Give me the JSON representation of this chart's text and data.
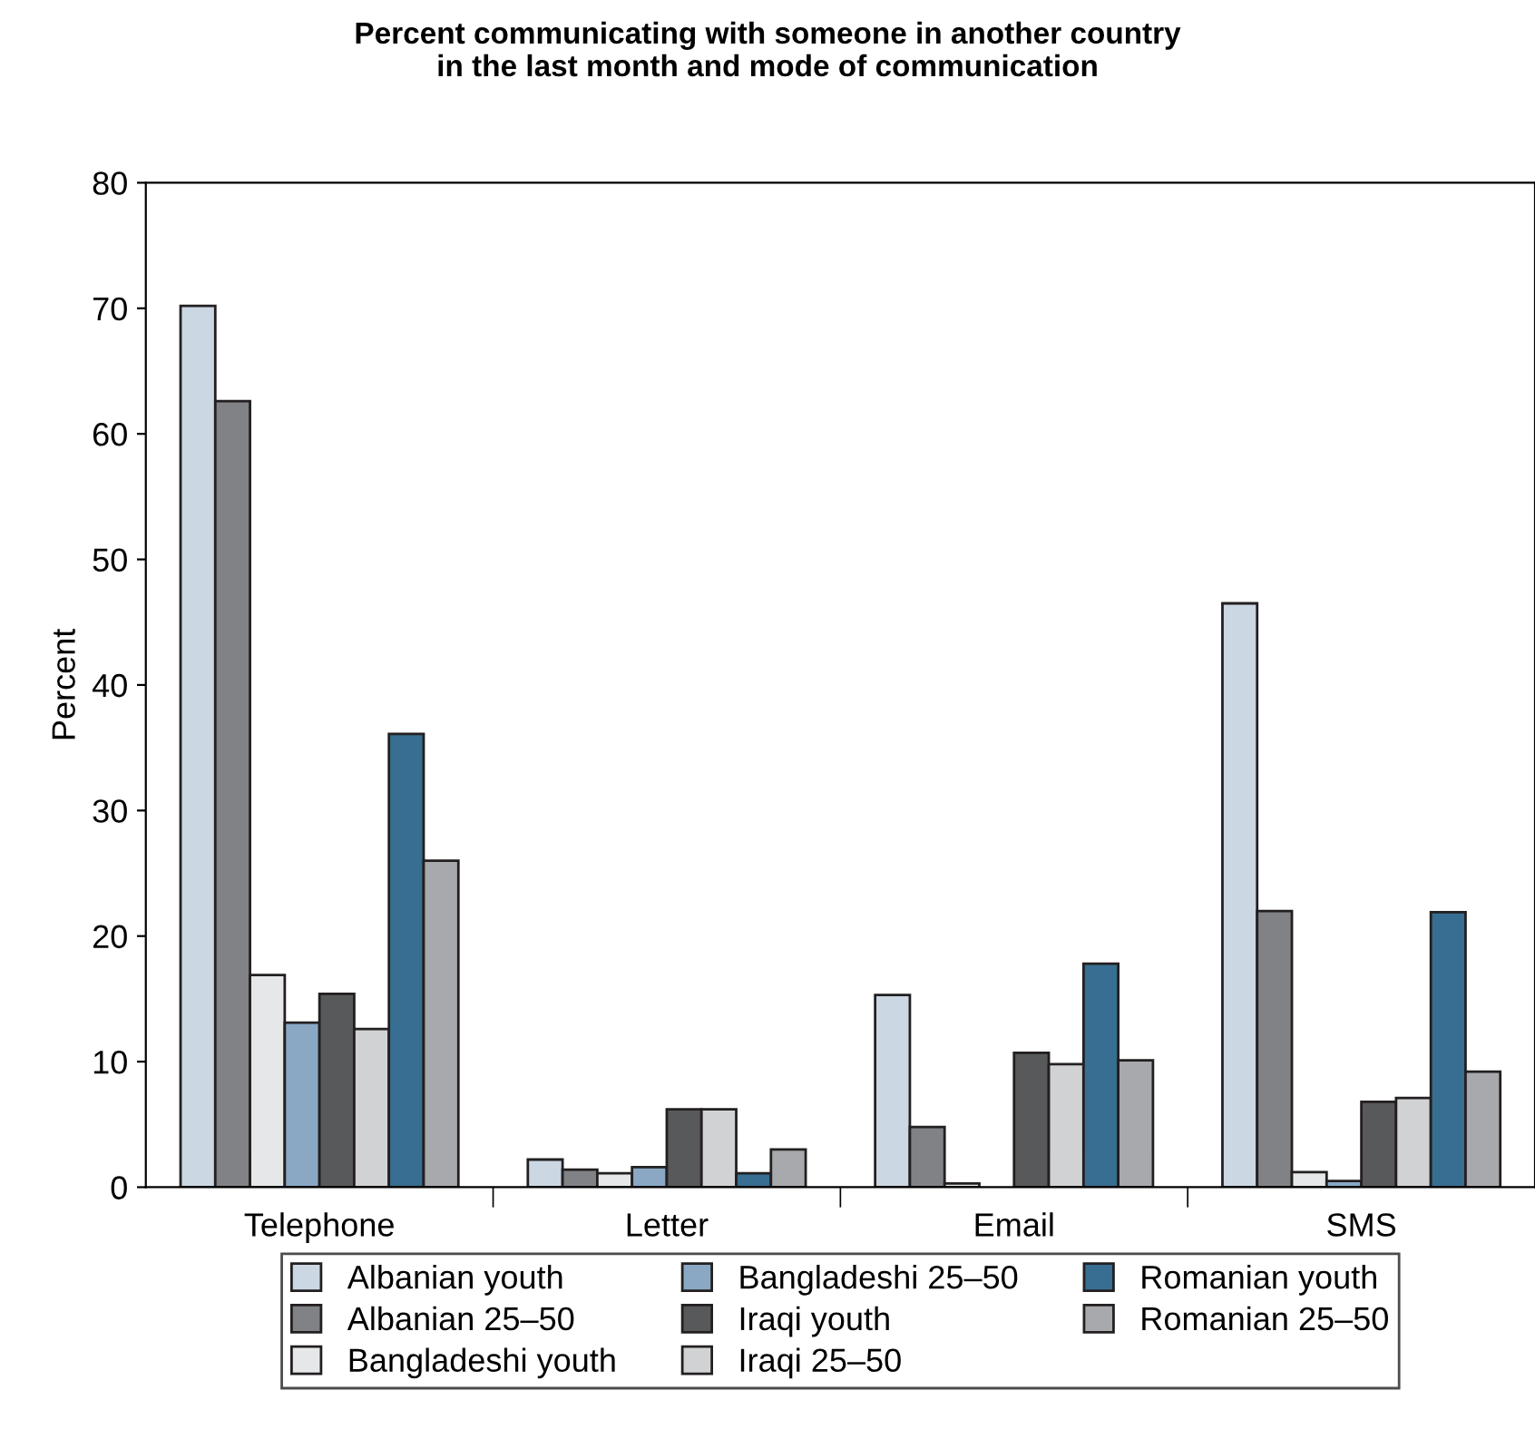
{
  "chart_data": {
    "type": "bar",
    "title": "Percent communicating with someone in another country\nin the last month and mode of communication",
    "ylabel": "Percent",
    "categories": [
      "Telephone",
      "Letter",
      "Email",
      "SMS"
    ],
    "series": [
      {
        "name": "Albanian youth",
        "color": "#cbd7e3",
        "values": [
          70.2,
          2.2,
          15.3,
          46.5
        ]
      },
      {
        "name": "Albanian 25–50",
        "color": "#808285",
        "values": [
          62.6,
          1.4,
          4.8,
          22.0
        ]
      },
      {
        "name": "Bangladeshi youth",
        "color": "#e6e7e8",
        "values": [
          16.9,
          1.1,
          0.3,
          1.2
        ]
      },
      {
        "name": "Bangladeshi 25–50",
        "color": "#8aa8c3",
        "values": [
          13.1,
          1.6,
          null,
          0.5
        ]
      },
      {
        "name": "Iraqi youth",
        "color": "#58595b",
        "values": [
          15.4,
          6.2,
          10.7,
          6.8
        ]
      },
      {
        "name": "Iraqi 25–50",
        "color": "#d1d2d4",
        "values": [
          12.6,
          6.2,
          9.8,
          7.1
        ]
      },
      {
        "name": "Romanian youth",
        "color": "#376e91",
        "values": [
          36.1,
          1.1,
          17.8,
          21.9
        ]
      },
      {
        "name": "Romanian 25–50",
        "color": "#a7a9ac",
        "values": [
          26.0,
          3.0,
          10.1,
          9.2
        ]
      }
    ],
    "ylim": [
      0,
      80
    ],
    "yticks": [
      0,
      10,
      20,
      30,
      40,
      50,
      60,
      70,
      80
    ],
    "grid": false,
    "legend": "bottom"
  }
}
